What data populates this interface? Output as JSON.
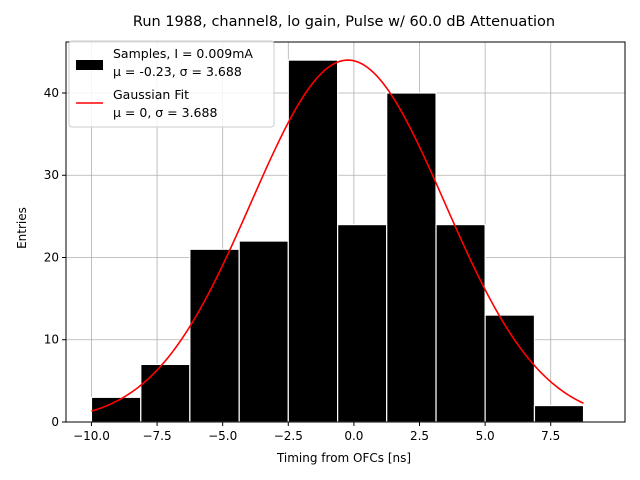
{
  "chart_data": {
    "type": "bar",
    "title": "Run 1988, channel8, lo gain, Pulse w/ 60.0 dB Attenuation",
    "xlabel": "Timing from OFCs [ns]",
    "ylabel": "Entries",
    "xlim": [
      -10.97,
      10.33
    ],
    "ylim": [
      0,
      46.2
    ],
    "grid": true,
    "bin_edges": [
      -10.0,
      -8.12,
      -6.25,
      -4.37,
      -2.5,
      -0.62,
      1.25,
      3.13,
      5.0,
      6.88,
      8.75
    ],
    "values": [
      3,
      7,
      21,
      22,
      44,
      24,
      40,
      24,
      13,
      2
    ],
    "xticks": [
      -10.0,
      -7.5,
      -5.0,
      -2.5,
      0.0,
      2.5,
      5.0,
      7.5
    ],
    "xtick_labels": [
      "−10.0",
      "−7.5",
      "−5.0",
      "−2.5",
      "0.0",
      "2.5",
      "5.0",
      "7.5"
    ],
    "yticks": [
      0,
      10,
      20,
      30,
      40
    ],
    "ytick_labels": [
      "0",
      "10",
      "20",
      "30",
      "40"
    ],
    "fit": {
      "name": "Gaussian Fit",
      "amplitude": 44.0,
      "mu": -0.23,
      "sigma": 3.688,
      "x_range": [
        -10.0,
        8.75
      ]
    },
    "legend": {
      "position": "top-left",
      "entries": [
        {
          "kind": "patch",
          "color": "#000000",
          "line1": "Samples, I = 0.009mA",
          "line2": "μ = -0.23, σ = 3.688"
        },
        {
          "kind": "line",
          "color": "#ff0000",
          "line1": "Gaussian Fit",
          "line2": "μ = 0, σ = 3.688"
        }
      ]
    },
    "colors": {
      "bars": "#000000",
      "fit": "#ff0000",
      "grid": "#b0b0b0"
    }
  }
}
